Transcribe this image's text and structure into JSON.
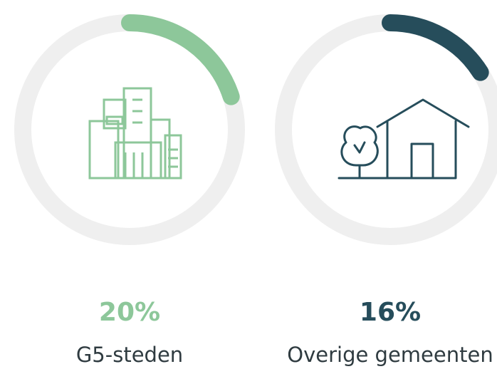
{
  "chart_data": [
    {
      "type": "donut",
      "categories": [
        "G5-steden"
      ],
      "values": [
        20
      ],
      "value_labels": [
        "20%"
      ],
      "color": "#8dc79a",
      "track_color": "#efefef"
    },
    {
      "type": "donut",
      "categories": [
        "Overige gemeenten"
      ],
      "values": [
        16
      ],
      "value_labels": [
        "16%"
      ],
      "color": "#264d5b",
      "track_color": "#efefef"
    }
  ]
}
